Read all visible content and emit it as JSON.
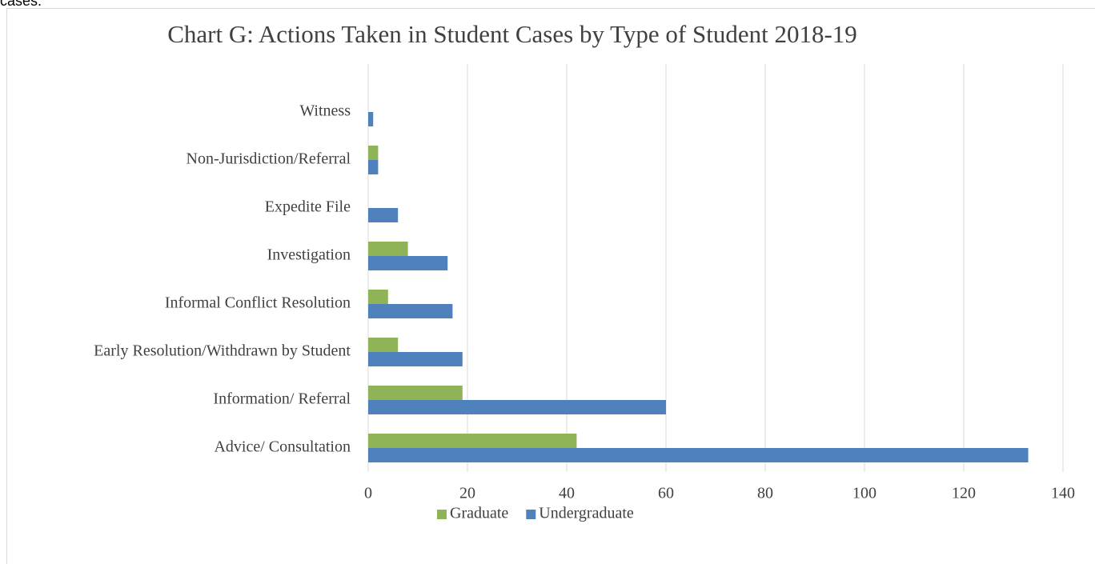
{
  "page_text": "cases.",
  "chart_data": {
    "type": "hbar",
    "title": "Chart G: Actions Taken in Student Cases by Type of Student 2018-19",
    "categories": [
      "Witness",
      "Non-Jurisdiction/Referral",
      "Expedite File",
      "Investigation",
      "Informal Conflict Resolution",
      "Early Resolution/Withdrawn by Student",
      "Information/ Referral",
      "Advice/ Consultation"
    ],
    "series": [
      {
        "name": "Graduate",
        "color": "#8fb357",
        "values": [
          0,
          2,
          0,
          8,
          4,
          6,
          19,
          42
        ]
      },
      {
        "name": "Undergraduate",
        "color": "#4f81bd",
        "values": [
          1,
          2,
          6,
          16,
          17,
          19,
          60,
          133
        ]
      }
    ],
    "xlim": [
      0,
      140
    ],
    "xticks": [
      0,
      20,
      40,
      60,
      80,
      100,
      120,
      140
    ],
    "grid": true,
    "legend": "bottom"
  }
}
